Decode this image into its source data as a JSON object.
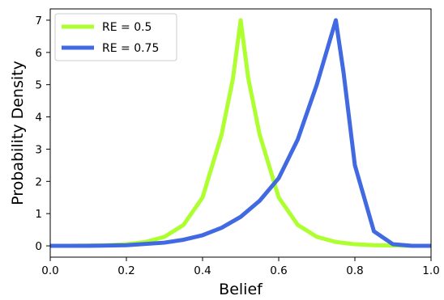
{
  "chart_data": {
    "type": "line",
    "xlabel": "Belief",
    "ylabel": "Probability Density",
    "xlim": [
      0.0,
      1.0
    ],
    "ylim": [
      -0.35,
      7.35
    ],
    "xticks": [
      "0.0",
      "0.2",
      "0.4",
      "0.6",
      "0.8",
      "1.0"
    ],
    "yticks": [
      "0",
      "1",
      "2",
      "3",
      "4",
      "5",
      "6",
      "7"
    ],
    "grid": false,
    "legend_position": "top-left",
    "series": [
      {
        "name": "RE = 0.5",
        "color": "#adff2f",
        "x": [
          0.0,
          0.05,
          0.1,
          0.15,
          0.2,
          0.25,
          0.3,
          0.35,
          0.4,
          0.45,
          0.48,
          0.5,
          0.52,
          0.55,
          0.6,
          0.65,
          0.7,
          0.75,
          0.8,
          0.85,
          0.9,
          0.95,
          1.0
        ],
        "y": [
          0.0,
          0.0,
          0.01,
          0.02,
          0.05,
          0.12,
          0.28,
          0.65,
          1.5,
          3.45,
          5.2,
          7.0,
          5.2,
          3.45,
          1.5,
          0.65,
          0.28,
          0.12,
          0.05,
          0.02,
          0.01,
          0.0,
          0.0
        ]
      },
      {
        "name": "RE = 0.75",
        "color": "#4169e1",
        "x": [
          0.0,
          0.1,
          0.2,
          0.3,
          0.35,
          0.4,
          0.45,
          0.5,
          0.55,
          0.6,
          0.65,
          0.7,
          0.73,
          0.75,
          0.77,
          0.8,
          0.85,
          0.9,
          0.95,
          1.0
        ],
        "y": [
          0.0,
          0.0,
          0.02,
          0.1,
          0.19,
          0.33,
          0.56,
          0.9,
          1.4,
          2.1,
          3.3,
          5.0,
          6.2,
          7.0,
          5.4,
          2.5,
          0.45,
          0.05,
          0.0,
          0.0
        ]
      }
    ]
  }
}
